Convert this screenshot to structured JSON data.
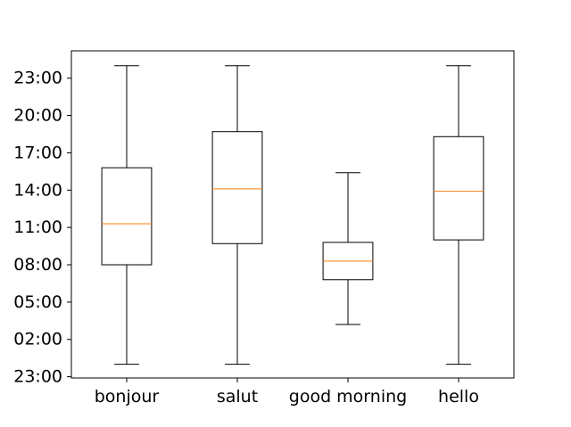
{
  "chart_data": {
    "type": "boxplot",
    "title": "",
    "xlabel": "",
    "ylabel": "",
    "categories": [
      "bonjour",
      "salut",
      "good morning",
      "hello"
    ],
    "y_tick_labels": [
      "23:00",
      "02:00",
      "05:00",
      "08:00",
      "11:00",
      "14:00",
      "17:00",
      "20:00",
      "23:00"
    ],
    "y_tick_hours": [
      -1,
      2,
      5,
      8,
      11,
      14,
      17,
      20,
      23
    ],
    "ylim_hours": [
      -1.1,
      25.2
    ],
    "boxes": [
      {
        "name": "bonjour",
        "whisker_low": 0.0,
        "q1": 8.0,
        "median": 11.3,
        "q3": 15.8,
        "whisker_high": 24.0
      },
      {
        "name": "salut",
        "whisker_low": 0.0,
        "q1": 9.7,
        "median": 14.1,
        "q3": 18.7,
        "whisker_high": 24.0
      },
      {
        "name": "good morning",
        "whisker_low": 3.2,
        "q1": 6.8,
        "median": 8.3,
        "q3": 9.8,
        "whisker_high": 15.4
      },
      {
        "name": "hello",
        "whisker_low": 0.0,
        "q1": 10.0,
        "median": 13.9,
        "q3": 18.3,
        "whisker_high": 24.0
      }
    ],
    "colors": {
      "box": "#000000",
      "median": "#ff7f0e"
    },
    "grid": false,
    "legend": "none"
  }
}
